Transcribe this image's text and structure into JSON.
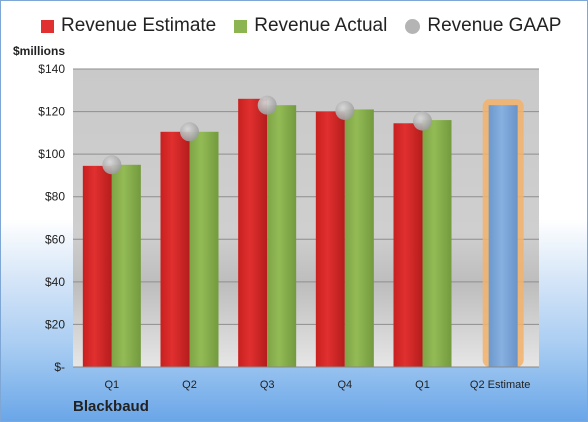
{
  "company": "Blackbaud",
  "colors": {
    "estimate": "#e0302f",
    "actual": "#8cb450",
    "gaap": "#b4b4b4",
    "projected": "#7ea8d8",
    "highlight": "#f3b36a"
  },
  "chart_data": {
    "type": "bar",
    "ylabel": "$millions",
    "ylim": [
      0,
      140
    ],
    "y_ticks": [
      0,
      20,
      40,
      60,
      80,
      100,
      120,
      140
    ],
    "y_tick_labels": [
      "$-",
      "$20",
      "$40",
      "$60",
      "$80",
      "$100",
      "$120",
      "$140"
    ],
    "grid": true,
    "legend_position": "top",
    "categories": [
      "Q1",
      "Q2",
      "Q3",
      "Q4",
      "Q1",
      "Q2 Estimate"
    ],
    "series": [
      {
        "name": "Revenue Estimate",
        "kind": "bar",
        "values": [
          94.5,
          110.5,
          126,
          120,
          114.5,
          123
        ]
      },
      {
        "name": "Revenue Actual",
        "kind": "bar",
        "values": [
          95,
          110.5,
          123,
          121,
          116,
          null
        ]
      },
      {
        "name": "Revenue GAAP",
        "kind": "marker",
        "values": [
          95,
          110.5,
          123,
          120.5,
          115.5,
          null
        ]
      }
    ]
  }
}
